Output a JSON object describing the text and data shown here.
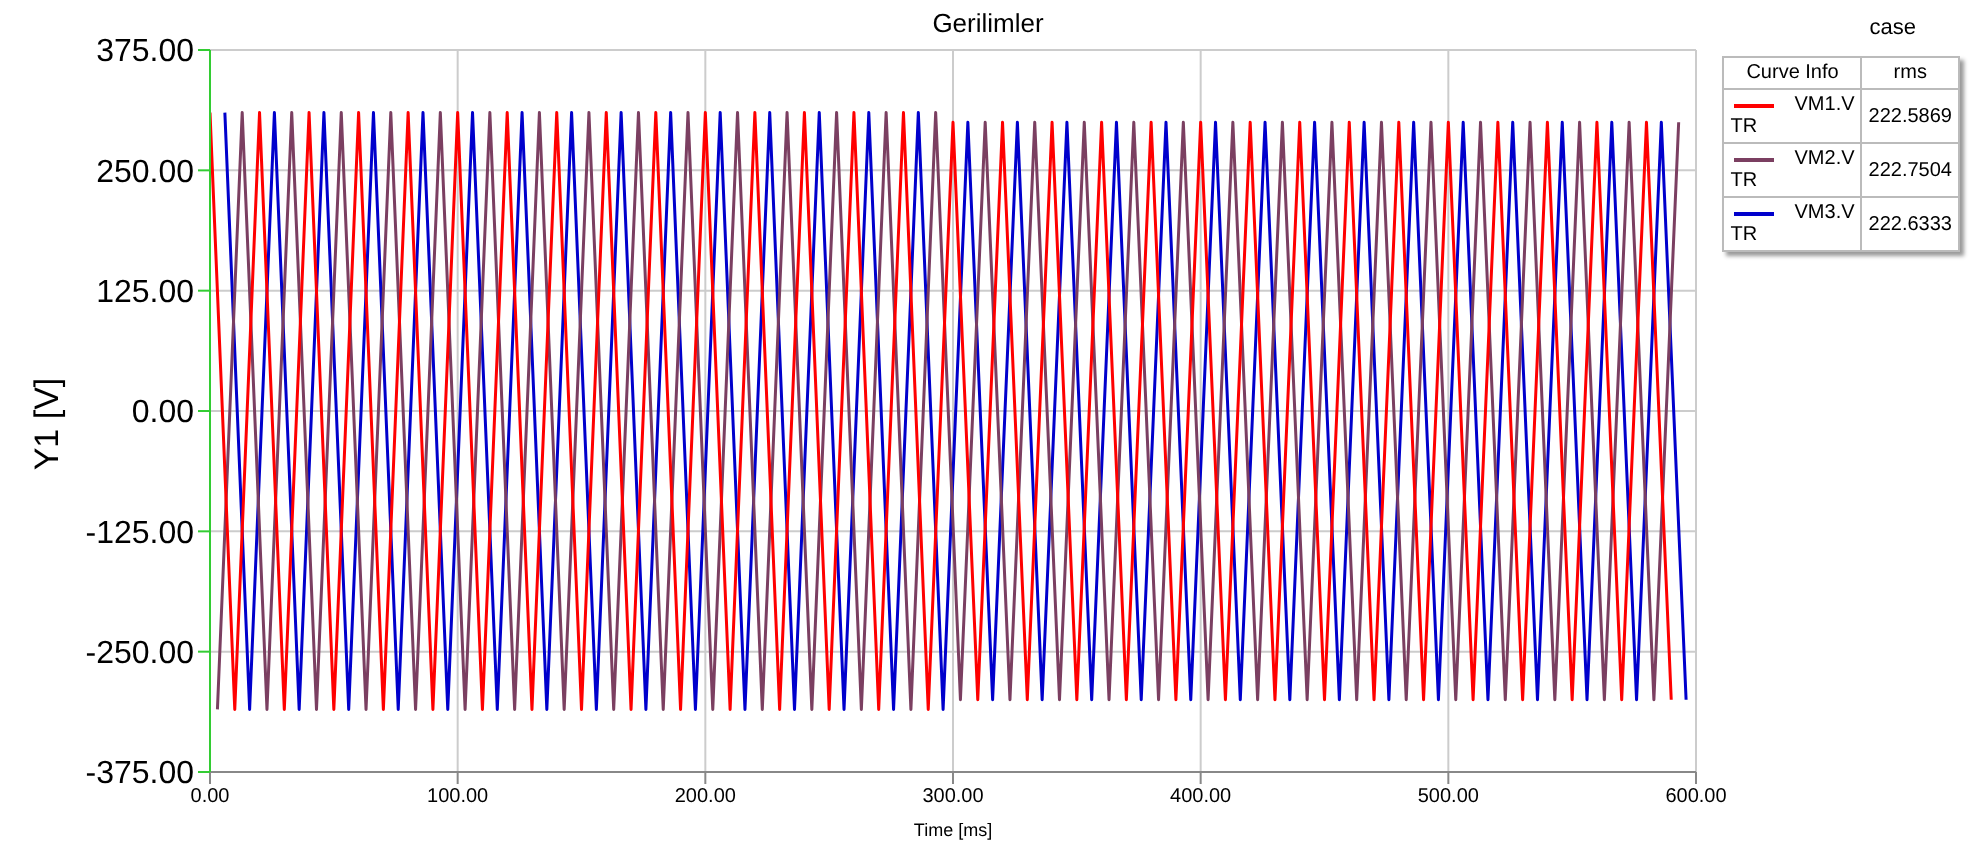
{
  "chart_data": {
    "type": "line",
    "title": "Gerilimler",
    "xlabel": "Time [ms]",
    "ylabel": "Y1 [V]",
    "xlim": [
      0,
      600
    ],
    "xticks": [
      {
        "value": 0,
        "label": "0.00"
      },
      {
        "value": 100,
        "label": "100.00"
      },
      {
        "value": 200,
        "label": "200.00"
      },
      {
        "value": 300,
        "label": "300.00"
      },
      {
        "value": 400,
        "label": "400.00"
      },
      {
        "value": 500,
        "label": "500.00"
      },
      {
        "value": 600,
        "label": "600.00"
      }
    ],
    "ylim": [
      -375,
      375
    ],
    "yticks": [
      {
        "value": -375,
        "label": "-375.00"
      },
      {
        "value": -250,
        "label": "-250.00"
      },
      {
        "value": -125,
        "label": "-125.00"
      },
      {
        "value": 0,
        "label": "0.00"
      },
      {
        "value": 125,
        "label": "125.00"
      },
      {
        "value": 250,
        "label": "250.00"
      },
      {
        "value": 375,
        "label": "375.00"
      }
    ],
    "grid": true,
    "legend": "top right",
    "marker": "none",
    "line_style": "solid",
    "annotations": [
      "case",
      "Curve Info",
      "rms",
      "TR",
      "222.5869",
      "TR",
      "222.7504",
      "TR",
      "222.6333"
    ],
    "series": [
      {
        "name": "VM1.V",
        "color": "#ff0000",
        "x": [
          0,
          10,
          20,
          30,
          40,
          50,
          60,
          70,
          80,
          90,
          100,
          110,
          120,
          130,
          140,
          150,
          160,
          170,
          180,
          190,
          200,
          210,
          220,
          230,
          240,
          250,
          260,
          270,
          280,
          290,
          300,
          310,
          320,
          330,
          340,
          350,
          360,
          370,
          380,
          390,
          400,
          410,
          420,
          430,
          440,
          450,
          460,
          470,
          480,
          490,
          500,
          510,
          520,
          530,
          540,
          550,
          560,
          570,
          580,
          590
        ],
        "values": [
          310,
          -310,
          310,
          -310,
          310,
          -310,
          310,
          -310,
          310,
          -310,
          310,
          -310,
          310,
          -310,
          310,
          -310,
          310,
          -310,
          310,
          -310,
          310,
          -310,
          310,
          -310,
          310,
          -310,
          310,
          -310,
          310,
          -310,
          300,
          -300,
          300,
          -300,
          300,
          -300,
          300,
          -300,
          300,
          -300,
          300,
          -300,
          300,
          -300,
          300,
          -300,
          300,
          -300,
          300,
          -300,
          300,
          -300,
          300,
          -300,
          300,
          -300,
          300,
          -300,
          300,
          -300
        ]
      },
      {
        "name": "VM2.V",
        "color": "#7b3f61",
        "x": [
          3,
          13,
          23,
          33,
          43,
          53,
          63,
          73,
          83,
          93,
          103,
          113,
          123,
          133,
          143,
          153,
          163,
          173,
          183,
          193,
          203,
          213,
          223,
          233,
          243,
          253,
          263,
          273,
          283,
          293,
          303,
          313,
          323,
          333,
          343,
          353,
          363,
          373,
          383,
          393,
          403,
          413,
          423,
          433,
          443,
          453,
          463,
          473,
          483,
          493,
          503,
          513,
          523,
          533,
          543,
          553,
          563,
          573,
          583,
          593
        ],
        "values": [
          -310,
          310,
          -310,
          310,
          -310,
          310,
          -310,
          310,
          -310,
          310,
          -310,
          310,
          -310,
          310,
          -310,
          310,
          -310,
          310,
          -310,
          310,
          -310,
          310,
          -310,
          310,
          -310,
          310,
          -310,
          310,
          -310,
          310,
          -300,
          300,
          -300,
          300,
          -300,
          300,
          -300,
          300,
          -300,
          300,
          -300,
          300,
          -300,
          300,
          -300,
          300,
          -300,
          300,
          -300,
          300,
          -300,
          300,
          -300,
          300,
          -300,
          300,
          -300,
          300,
          -300,
          300
        ]
      },
      {
        "name": "VM3.V",
        "color": "#0000cc",
        "x": [
          6,
          16,
          26,
          36,
          46,
          56,
          66,
          76,
          86,
          96,
          106,
          116,
          126,
          136,
          146,
          156,
          166,
          176,
          186,
          196,
          206,
          216,
          226,
          236,
          246,
          256,
          266,
          276,
          286,
          296,
          306,
          316,
          326,
          336,
          346,
          356,
          366,
          376,
          386,
          396,
          406,
          416,
          426,
          436,
          446,
          456,
          466,
          476,
          486,
          496,
          506,
          516,
          526,
          536,
          546,
          556,
          566,
          576,
          586,
          596
        ],
        "values": [
          310,
          -310,
          310,
          -310,
          310,
          -310,
          310,
          -310,
          310,
          -310,
          310,
          -310,
          310,
          -310,
          310,
          -310,
          310,
          -310,
          310,
          -310,
          310,
          -310,
          310,
          -310,
          310,
          -310,
          310,
          -310,
          310,
          -310,
          300,
          -300,
          300,
          -300,
          300,
          -300,
          300,
          -300,
          300,
          -300,
          300,
          -300,
          300,
          -300,
          300,
          -300,
          300,
          -300,
          300,
          -300,
          300,
          -300,
          300,
          -300,
          300,
          -300,
          300,
          -300,
          300,
          -300
        ]
      }
    ]
  }
}
